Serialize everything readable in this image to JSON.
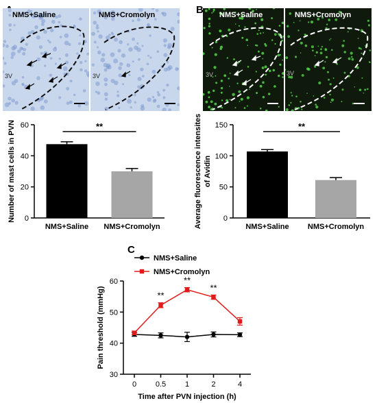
{
  "panels": {
    "a": {
      "letter": "A",
      "image_labels": [
        "NMS+Saline",
        "NMS+Cromolyn"
      ],
      "region_label": "3V"
    },
    "b": {
      "letter": "B",
      "image_labels": [
        "NMS+Saline",
        "NMS+Cromolyn"
      ],
      "region_label": "3V"
    },
    "c": {
      "letter": "C"
    }
  },
  "colors": {
    "he_bg": "#c9d7ec",
    "he_cell": "#7f9bcf",
    "fluor_bg": "#0f1a0d",
    "fluor_cell": "#55d34a",
    "bar_saline": "#000000",
    "bar_cromolyn": "#a6a6a6",
    "line_saline": "#000000",
    "line_cromolyn": "#e11b1b"
  },
  "chart_data": [
    {
      "type": "bar",
      "categories": [
        "NMS+Saline",
        "NMS+Cromolyn"
      ],
      "values": [
        47.5,
        30
      ],
      "errors": [
        1.5,
        1.8
      ],
      "ylabel": "Number of mast cells in PVN",
      "ylim": [
        0,
        60
      ],
      "yticks": [
        0,
        20,
        40,
        60
      ],
      "significance": "**"
    },
    {
      "type": "bar",
      "categories": [
        "NMS+Saline",
        "NMS+Cromolyn"
      ],
      "values": [
        107,
        61
      ],
      "errors": [
        3,
        4
      ],
      "ylabel": "Average fluorescence intensites of Avidin",
      "ylim": [
        0,
        150
      ],
      "yticks": [
        0,
        50,
        100,
        150
      ],
      "significance": "**"
    },
    {
      "type": "line",
      "x": [
        "0",
        "0.5",
        "1",
        "2",
        "4"
      ],
      "series": [
        {
          "name": "NMS+Saline",
          "values": [
            42.8,
            42.5,
            42.0,
            42.8,
            42.7
          ],
          "errors": [
            0.6,
            0.8,
            1.5,
            0.8,
            0.6
          ]
        },
        {
          "name": "NMS+Cromolyn",
          "values": [
            43.3,
            52.2,
            57.2,
            54.8,
            47.0
          ],
          "errors": [
            0.6,
            0.8,
            0.7,
            0.7,
            1.2
          ]
        }
      ],
      "significance_labels": [
        "",
        "**",
        "**",
        "**",
        ""
      ],
      "xlabel": "Time after PVN injection (h)",
      "ylabel": "Pain threshold (mmHg)",
      "ylim": [
        30,
        60
      ],
      "yticks": [
        30,
        40,
        50,
        60
      ],
      "legend_position": "top-left"
    }
  ]
}
